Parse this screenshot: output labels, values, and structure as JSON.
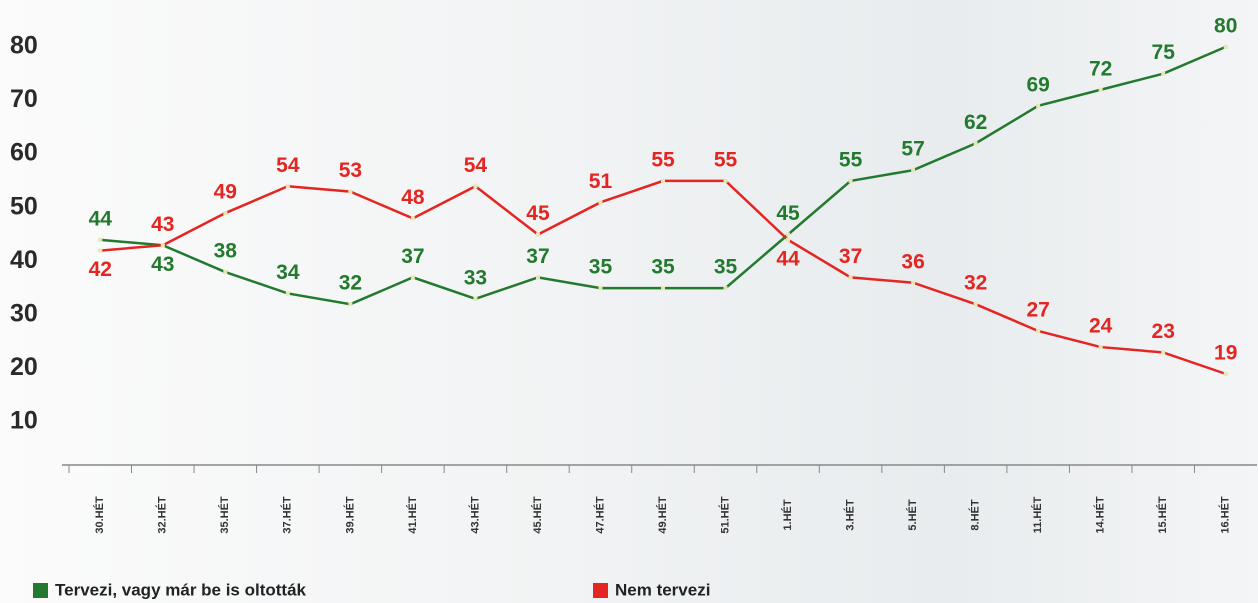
{
  "chart_data": {
    "type": "line",
    "categories": [
      "30.HÉT",
      "32.HÉT",
      "35.HÉT",
      "37.HÉT",
      "39.HÉT",
      "41.HÉT",
      "43.HÉT",
      "45.HÉT",
      "47.HÉT",
      "49.HÉT",
      "51.HÉT",
      "1.HÉT",
      "3.HÉT",
      "5.HÉT",
      "8.HÉT",
      "11.HÉT",
      "14.HÉT",
      "15.HÉT",
      "16.HÉT"
    ],
    "series": [
      {
        "name": "Tervezi, vagy már be is oltották",
        "color": "#237a2f",
        "values": [
          44,
          43,
          38,
          34,
          32,
          37,
          33,
          37,
          35,
          35,
          35,
          45,
          55,
          57,
          62,
          69,
          72,
          75,
          80
        ]
      },
      {
        "name": "Nem tervezi",
        "color": "#e52521",
        "values": [
          42,
          43,
          49,
          54,
          53,
          48,
          54,
          45,
          51,
          55,
          55,
          44,
          37,
          36,
          32,
          27,
          24,
          23,
          19
        ]
      }
    ],
    "ylim": [
      2,
      88
    ],
    "yticks": [
      10,
      20,
      30,
      40,
      50,
      60,
      70,
      80
    ]
  }
}
